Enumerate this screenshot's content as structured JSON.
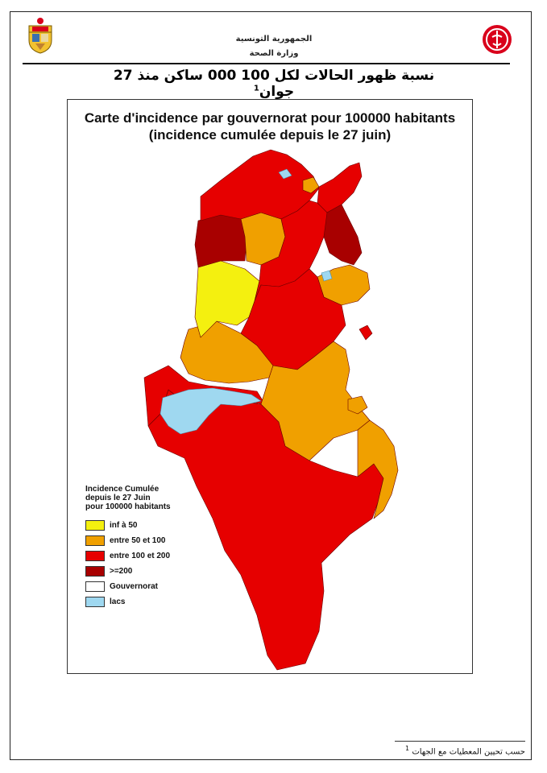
{
  "header": {
    "republic": "الجمهورية التونسية",
    "ministry": "وزارة الصحة",
    "title": "نسبة ظهور الحالات لكل 100 000 ساكن منذ 27 جوان",
    "title_note": "1"
  },
  "map": {
    "title_line1": "Carte d'incidence par gouvernorat pour 100000 habitants",
    "title_line2": "(incidence cumulée depuis le 27 juin)",
    "legend": {
      "title_line1": "Incidence Cumulée",
      "title_line2": "depuis le 27 Juin",
      "title_line3": "pour 100000 habitants",
      "items": [
        {
          "label": "inf à 50",
          "color": "#f4f00f"
        },
        {
          "label": "entre 50 et 100",
          "color": "#f0a000"
        },
        {
          "label": "entre 100 et 200",
          "color": "#e60000"
        },
        {
          "label": ">=200",
          "color": "#a80000"
        },
        {
          "label": "Gouvernorat",
          "color": "#ffffff"
        },
        {
          "label": "lacs",
          "color": "#9fd8f0"
        }
      ]
    }
  },
  "footnote": {
    "text": "حسب تحيين المعطيات مع الجهات",
    "note": "1"
  },
  "colors": {
    "low": "#f4f00f",
    "medium": "#f0a000",
    "high": "#e60000",
    "very_high": "#a80000",
    "lake": "#9fd8f0",
    "emblem_red": "#d9001b"
  }
}
